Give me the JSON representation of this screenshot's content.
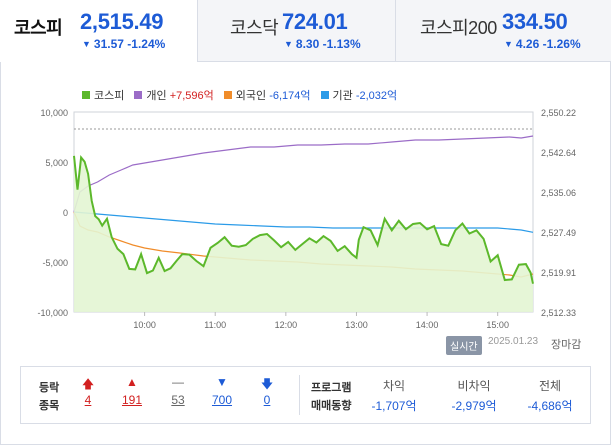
{
  "tabs": [
    {
      "name": "코스피",
      "value": "2,515.49",
      "change": "31.57",
      "pct": "-1.24%"
    },
    {
      "name": "코스닥",
      "value": "724.01",
      "change": "8.30",
      "pct": "-1.13%"
    },
    {
      "name": "코스피200",
      "value": "334.50",
      "change": "4.26",
      "pct": "-1.26%"
    }
  ],
  "legend": {
    "kospi": "코스피",
    "individual": "개인",
    "individual_val": "+7,596억",
    "foreign": "외국인",
    "foreign_val": "-6,174억",
    "institution": "기관",
    "institution_val": "-2,032억"
  },
  "colors": {
    "kospi": "#5cb82b",
    "kospi_fill": "#e3f5d3",
    "individual": "#9b6cc7",
    "foreign": "#f08c2a",
    "institution": "#2b9be8",
    "down": "#1d5bd6",
    "up": "#d22020"
  },
  "chart_data": {
    "type": "line",
    "x_ticks": [
      "10:00",
      "11:00",
      "12:00",
      "13:00",
      "14:00",
      "15:00"
    ],
    "y_left_ticks": [
      "10,000",
      "5,000",
      "0",
      "-5,000",
      "-10,000"
    ],
    "y_right_ticks": [
      "2,550.22",
      "2,542.64",
      "2,535.06",
      "2,527.49",
      "2,519.91",
      "2,512.33"
    ],
    "xlim_minutes": [
      540,
      930
    ],
    "ylim_left": [
      -10000,
      10000
    ],
    "ylim_right": [
      2512.33,
      2550.22
    ],
    "series": [
      {
        "name": "코스피",
        "axis": "right",
        "x": [
          540,
          543,
          546,
          549,
          552,
          555,
          558,
          561,
          564,
          568,
          572,
          577,
          582,
          587,
          592,
          597,
          602,
          607,
          612,
          617,
          622,
          627,
          632,
          638,
          644,
          650,
          656,
          662,
          668,
          674,
          680,
          686,
          692,
          698,
          704,
          710,
          716,
          722,
          728,
          734,
          740,
          746,
          752,
          758,
          764,
          770,
          776,
          780,
          782,
          786,
          792,
          798,
          804,
          810,
          816,
          822,
          828,
          834,
          840,
          846,
          852,
          858,
          864,
          870,
          876,
          882,
          888,
          894,
          900,
          906,
          912,
          918,
          924,
          928,
          930
        ],
        "y": [
          2541.9,
          2535.5,
          2541.6,
          2540.8,
          2538.5,
          2533.4,
          2530.5,
          2529.9,
          2528.7,
          2530.0,
          2526.5,
          2524.3,
          2523.3,
          2520.5,
          2520.4,
          2523.3,
          2519.7,
          2520.2,
          2522.6,
          2520.1,
          2520.6,
          2522.0,
          2523.3,
          2523.2,
          2522.0,
          2521.0,
          2524.5,
          2525.4,
          2526.5,
          2524.9,
          2524.7,
          2525.0,
          2526.2,
          2526.9,
          2527.1,
          2525.9,
          2524.6,
          2525.6,
          2524.1,
          2525.2,
          2526.3,
          2525.5,
          2526.7,
          2525.8,
          2523.9,
          2524.8,
          2523.3,
          2522.6,
          2526.0,
          2528.4,
          2527.8,
          2525.0,
          2530.0,
          2527.8,
          2529.6,
          2528.0,
          2529.0,
          2529.2,
          2528.0,
          2528.6,
          2525.2,
          2524.9,
          2527.8,
          2529.1,
          2527.2,
          2527.8,
          2526.2,
          2521.9,
          2523.1,
          2518.4,
          2518.5,
          2521.3,
          2521.4,
          2519.8,
          2517.7
        ]
      },
      {
        "name": "개인",
        "axis": "left",
        "x": [
          540,
          545,
          552,
          560,
          570,
          580,
          590,
          600,
          615,
          630,
          650,
          670,
          690,
          710,
          730,
          750,
          770,
          790,
          810,
          830,
          850,
          870,
          890,
          910,
          920,
          930
        ],
        "y": [
          0,
          2000,
          2600,
          3000,
          3700,
          4200,
          4700,
          4900,
          5200,
          5500,
          5900,
          6200,
          6500,
          6500,
          6700,
          6700,
          6800,
          6800,
          7000,
          7200,
          7200,
          7300,
          7400,
          7500,
          7400,
          7600
        ]
      },
      {
        "name": "외국인",
        "axis": "left",
        "x": [
          540,
          545,
          552,
          560,
          570,
          580,
          590,
          600,
          615,
          630,
          650,
          670,
          690,
          710,
          730,
          750,
          770,
          790,
          810,
          830,
          850,
          870,
          890,
          910,
          920,
          930
        ],
        "y": [
          0,
          -1400,
          -1800,
          -2000,
          -2500,
          -2900,
          -3300,
          -3600,
          -3900,
          -4100,
          -4400,
          -4600,
          -4800,
          -4900,
          -5000,
          -5200,
          -5300,
          -5400,
          -5500,
          -5700,
          -5800,
          -5900,
          -6100,
          -6300,
          -6500,
          -6200
        ]
      },
      {
        "name": "기관",
        "axis": "left",
        "x": [
          540,
          560,
          580,
          600,
          620,
          640,
          660,
          680,
          700,
          720,
          740,
          760,
          780,
          800,
          820,
          840,
          860,
          880,
          900,
          910,
          920,
          930
        ],
        "y": [
          0,
          -200,
          -400,
          -600,
          -800,
          -1000,
          -1200,
          -1300,
          -1400,
          -1500,
          -1500,
          -1600,
          -1600,
          -1600,
          -1600,
          -1600,
          -1600,
          -1600,
          -1600,
          -1700,
          -1800,
          -2032
        ]
      }
    ]
  },
  "realtime": "실시간",
  "date": "2025.01.23",
  "status": "장마감",
  "breadth": {
    "label_line1": "등락",
    "label_line2": "종목",
    "upper_limit": "4",
    "rise": "191",
    "flat": "53",
    "fall": "700",
    "lower_limit": "0"
  },
  "program": {
    "label_line1": "프로그램",
    "label_line2": "매매동향",
    "cols": [
      {
        "head": "차익",
        "value": "-1,707억"
      },
      {
        "head": "비차익",
        "value": "-2,979억"
      },
      {
        "head": "전체",
        "value": "-4,686억"
      }
    ]
  }
}
